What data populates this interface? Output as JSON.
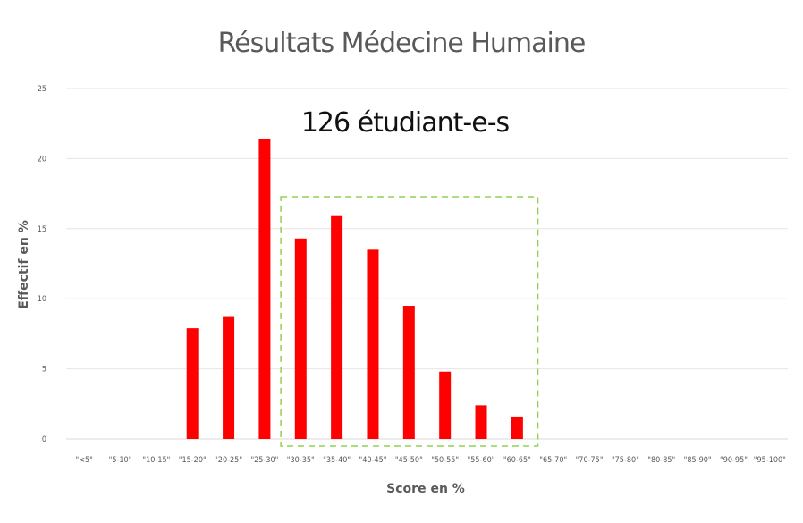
{
  "chart_data": {
    "type": "bar",
    "title": "Résultats Médecine Humaine",
    "annotation": "126 étudiant-e-s",
    "xlabel": "Score en %",
    "ylabel": "Effectif en %",
    "ylim": [
      0,
      25
    ],
    "yticks": [
      0,
      5,
      10,
      15,
      20,
      25
    ],
    "grid": true,
    "legend": "none",
    "bar_color": "#ff0000",
    "highlight": {
      "from_category": "\"30-35\"",
      "to_category": "\"60-65\"",
      "color": "#92d050",
      "style": "dashed"
    },
    "categories": [
      "\"<5\"",
      "\"5-10\"",
      "\"10-15\"",
      "\"15-20\"",
      "\"20-25\"",
      "\"25-30\"",
      "\"30-35\"",
      "\"35-40\"",
      "\"40-45\"",
      "\"45-50\"",
      "\"50-55\"",
      "\"55-60\"",
      "\"60-65\"",
      "\"65-70\"",
      "\"70-75\"",
      "\"75-80\"",
      "\"80-85\"",
      "\"85-90\"",
      "\"90-95\"",
      "\"95-100\""
    ],
    "values": [
      0,
      0,
      0,
      7.9,
      8.7,
      21.4,
      14.3,
      15.9,
      13.5,
      9.5,
      4.8,
      2.4,
      1.6,
      0,
      0,
      0,
      0,
      0,
      0,
      0
    ]
  }
}
